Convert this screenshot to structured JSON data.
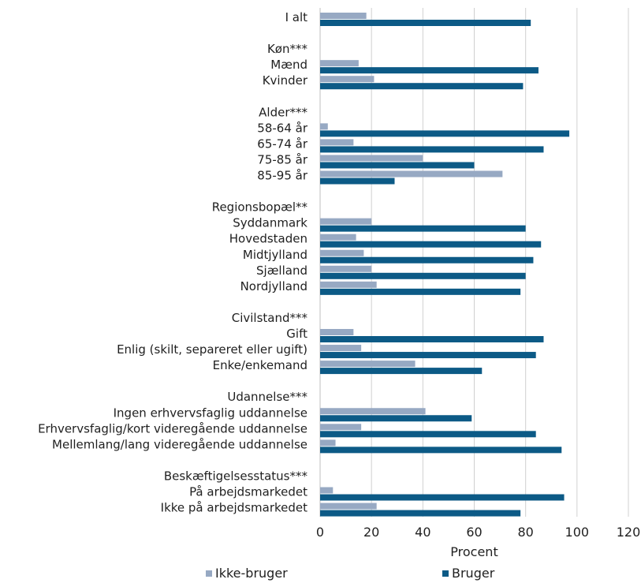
{
  "chart_data": {
    "type": "bar",
    "orientation": "horizontal",
    "categories": [
      "I alt",
      "",
      "Køn***",
      "Mænd",
      "Kvinder",
      "",
      "Alder***",
      "58-64 år",
      "65-74 år",
      "75-85 år",
      "85-95 år",
      "",
      "Regionsbopæl**",
      "Syddanmark",
      "Hovedstaden",
      "Midtjylland",
      "Sjælland",
      "Nordjylland",
      "",
      "Civilstand***",
      "Gift",
      "Enlig (skilt, separeret eller ugift)",
      "Enke/enkemand",
      "",
      "Udannelse***",
      "Ingen erhvervsfaglig uddannelse",
      "Erhvervsfaglig/kort videregående uddannelse",
      "Mellemlang/lang videregående uddannelse",
      "",
      "Beskæftigelsesstatus***",
      "På arbejdsmarkedet",
      "Ikke på arbejdsmarkedet"
    ],
    "series": [
      {
        "name": "Ikke-bruger",
        "color": "#97a9c3",
        "values": [
          18,
          null,
          null,
          15,
          21,
          null,
          null,
          3,
          13,
          40,
          71,
          null,
          null,
          20,
          14,
          17,
          20,
          22,
          null,
          null,
          13,
          16,
          37,
          null,
          null,
          41,
          16,
          6,
          null,
          null,
          5,
          22
        ]
      },
      {
        "name": "Bruger",
        "color": "#0c5a86",
        "values": [
          82,
          null,
          null,
          85,
          79,
          null,
          null,
          97,
          87,
          60,
          29,
          null,
          null,
          80,
          86,
          83,
          80,
          78,
          null,
          null,
          87,
          84,
          63,
          null,
          null,
          59,
          84,
          94,
          null,
          null,
          95,
          78
        ]
      }
    ],
    "xlabel": "Procent",
    "xlim": [
      0,
      120
    ],
    "xticks": [
      "0",
      "20",
      "40",
      "60",
      "80",
      "100",
      "120"
    ],
    "grid": true,
    "legend_position": "bottom"
  }
}
